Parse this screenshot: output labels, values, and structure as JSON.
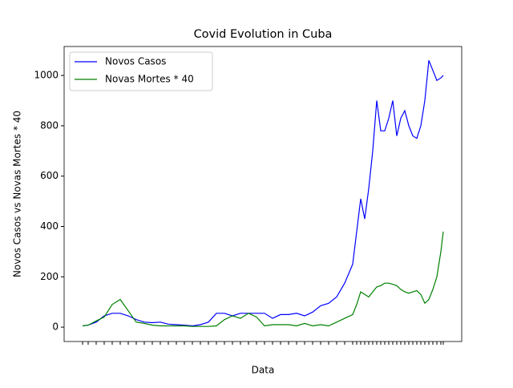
{
  "chart_data": {
    "type": "line",
    "title": "Covid Evolution in Cuba",
    "x_label": "Data",
    "y_label": "Novos Casos vs Novas Mortes * 40",
    "x": [
      0,
      7,
      17,
      27,
      37,
      47,
      57,
      67,
      77,
      87,
      97,
      107,
      117,
      127,
      137,
      147,
      157,
      167,
      177,
      187,
      197,
      207,
      217,
      227,
      237,
      247,
      257,
      267,
      277,
      287,
      297,
      307,
      317,
      327,
      337,
      342,
      347,
      352,
      357,
      362,
      367,
      372,
      377,
      382,
      387,
      392,
      397,
      402,
      407,
      412,
      417,
      422,
      427,
      432,
      437,
      442,
      447,
      450
    ],
    "series": [
      {
        "name": "Novos Casos",
        "color": "#0000ff",
        "values": [
          5,
          8,
          20,
          45,
          55,
          55,
          45,
          30,
          20,
          18,
          20,
          12,
          10,
          8,
          5,
          10,
          20,
          55,
          55,
          45,
          55,
          55,
          55,
          55,
          35,
          50,
          50,
          55,
          45,
          60,
          85,
          95,
          120,
          175,
          250,
          380,
          510,
          430,
          550,
          700,
          900,
          780,
          780,
          830,
          900,
          760,
          830,
          860,
          800,
          760,
          750,
          800,
          900,
          1060,
          1020,
          980,
          990,
          1000
        ]
      },
      {
        "name": "Novas Mortes * 40",
        "color": "#008000",
        "values": [
          5,
          8,
          25,
          40,
          90,
          110,
          65,
          20,
          15,
          8,
          5,
          5,
          5,
          5,
          3,
          3,
          3,
          5,
          30,
          45,
          35,
          55,
          40,
          5,
          10,
          10,
          10,
          5,
          15,
          5,
          10,
          5,
          20,
          35,
          50,
          90,
          140,
          130,
          120,
          140,
          160,
          165,
          175,
          175,
          170,
          165,
          150,
          140,
          135,
          140,
          145,
          130,
          95,
          110,
          150,
          200,
          300,
          380
        ]
      }
    ],
    "xlim": [
      -23,
      473
    ],
    "ylim": [
      -57,
      1115
    ],
    "yticks": [
      0,
      200,
      400,
      600,
      800,
      1000
    ],
    "legend": "upper left"
  }
}
